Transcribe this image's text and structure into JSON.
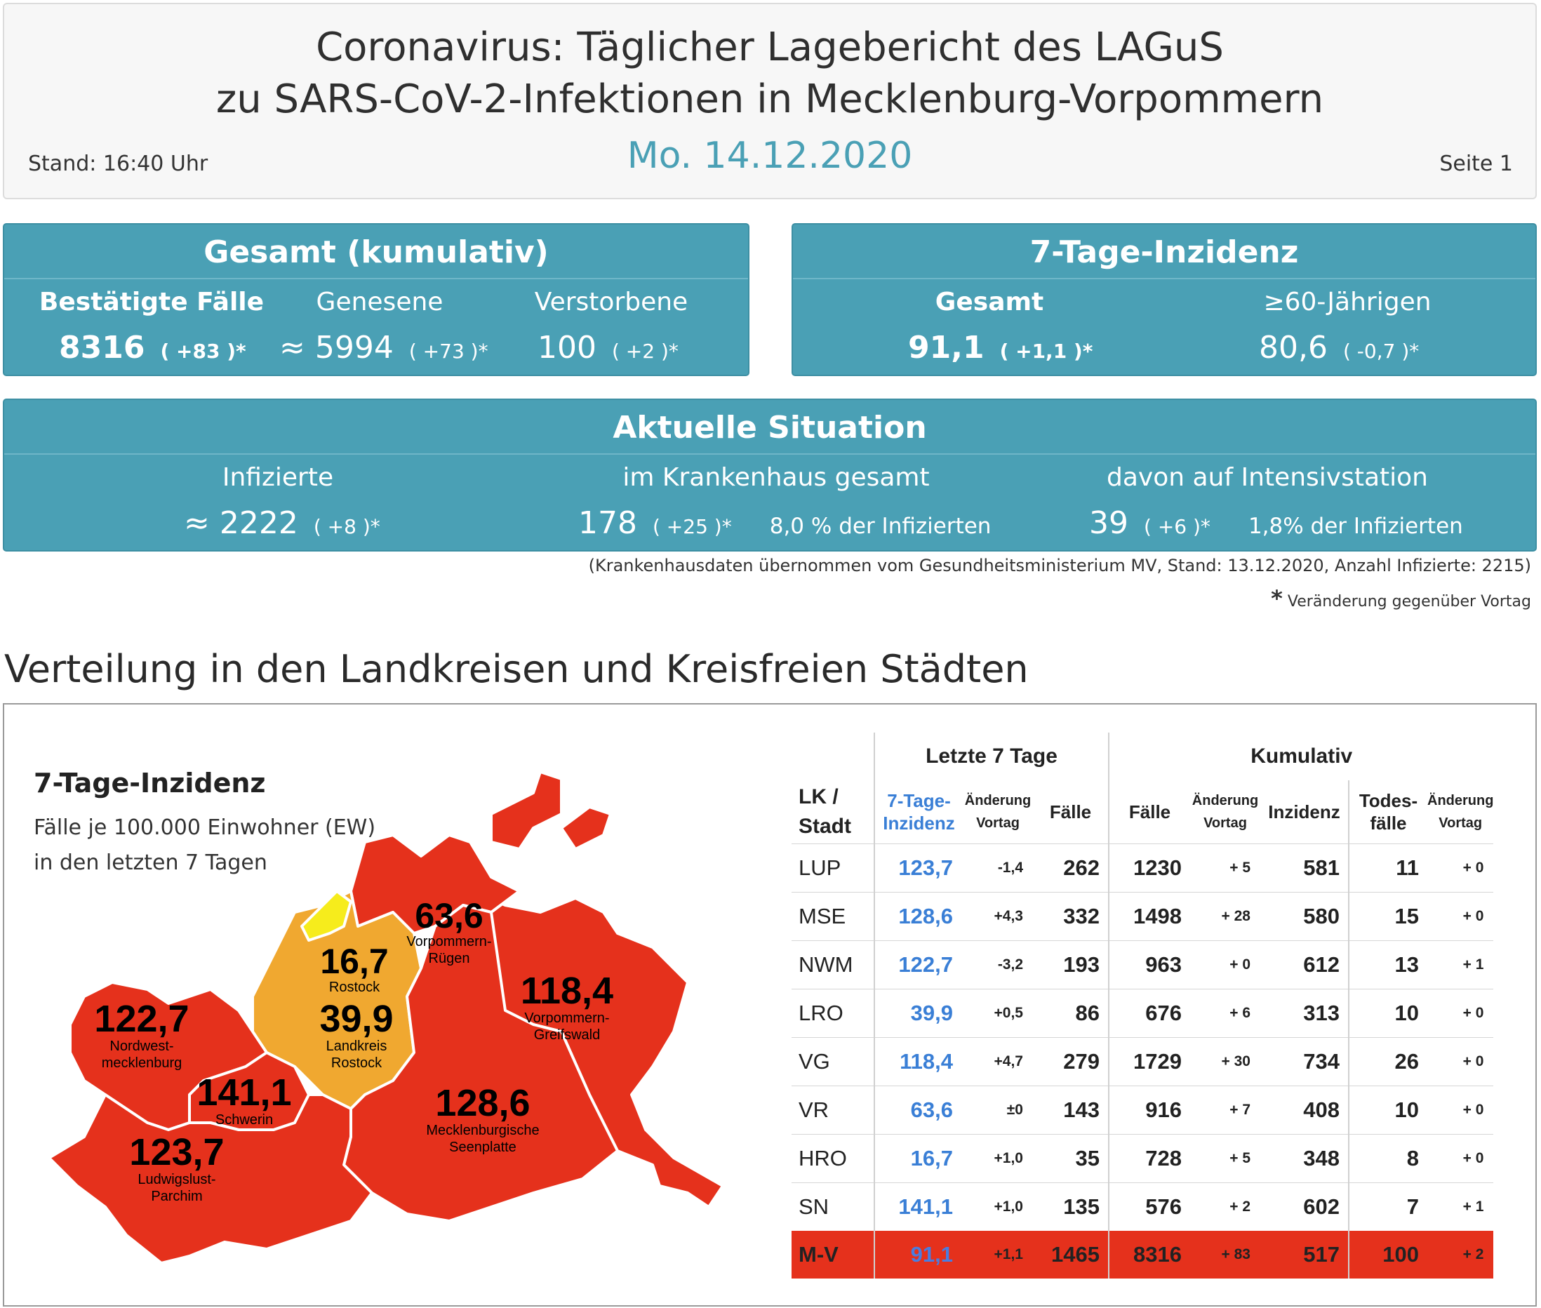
{
  "header": {
    "title_line1": "Coronavirus: Täglicher Lagebericht des LAGuS",
    "title_line2": "zu SARS-CoV-2-Infektionen in Mecklenburg-Vorpommern",
    "date": "Mo. 14.12.2020",
    "stand": "Stand: 16:40 Uhr",
    "page": "Seite 1"
  },
  "gesamt": {
    "title": "Gesamt (kumulativ)",
    "bestaetigt_label": "Bestätigte Fälle",
    "bestaetigt_value": "8316",
    "bestaetigt_delta": "( +83 )*",
    "genesene_label": "Genesene",
    "genesene_value": "≈ 5994",
    "genesene_delta": "( +73 )*",
    "verstorbene_label": "Verstorbene",
    "verstorbene_value": "100",
    "verstorbene_delta": "( +2 )*"
  },
  "inzidenz": {
    "title": "7-Tage-Inzidenz",
    "gesamt_label": "Gesamt",
    "gesamt_value": "91,1",
    "gesamt_delta": "( +1,1 )*",
    "ue60_label": "≥60-Jährigen",
    "ue60_value": "80,6",
    "ue60_delta": "( -0,7 )*"
  },
  "aktuell": {
    "title": "Aktuelle Situation",
    "infizierte_label": "Infizierte",
    "infizierte_value": "≈ 2222",
    "infizierte_delta": "( +8 )*",
    "kh_label": "im Krankenhaus gesamt",
    "kh_value": "178",
    "kh_delta": "( +25 )*",
    "kh_pct": "8,0 % der Infizierten",
    "its_label": "davon auf Intensivstation",
    "its_value": "39",
    "its_delta": "( +6 )*",
    "its_pct": "1,8% der Infizierten"
  },
  "notes": {
    "kh_source": "(Krankenhausdaten übernommen vom Gesundheitsministerium MV, Stand: 13.12.2020, Anzahl Infizierte: 2215)",
    "star": "*",
    "vortag": "Veränderung gegenüber Vortag"
  },
  "section_title": "Verteilung in den Landkreisen und Kreisfreien Städten",
  "map": {
    "title": "7-Tage-Inzidenz",
    "sub1": "Fälle je 100.000 Einwohner (EW)",
    "sub2": "in den letzten 7 Tagen",
    "colors": {
      "high": "#e5311c",
      "medium": "#f0a830",
      "low": "#f6ec1c",
      "border": "#ffffff"
    },
    "regions": [
      {
        "id": "vr",
        "value": "63,6",
        "name1": "Vorpommern-",
        "name2": "Rügen"
      },
      {
        "id": "hro",
        "value": "16,7",
        "name1": "Rostock",
        "name2": ""
      },
      {
        "id": "lro",
        "value": "39,9",
        "name1": "Landkreis",
        "name2": "Rostock"
      },
      {
        "id": "vg",
        "value": "118,4",
        "name1": "Vorpommern-",
        "name2": "Greifswald"
      },
      {
        "id": "nwm",
        "value": "122,7",
        "name1": "Nordwest-",
        "name2": "mecklenburg"
      },
      {
        "id": "sn",
        "value": "141,1",
        "name1": "Schwerin",
        "name2": ""
      },
      {
        "id": "mse",
        "value": "128,6",
        "name1": "Mecklenburgische",
        "name2": "Seenplatte"
      },
      {
        "id": "lup",
        "value": "123,7",
        "name1": "Ludwigslust-",
        "name2": "Parchim"
      }
    ]
  },
  "table": {
    "group_7": "Letzte 7 Tage",
    "group_kum": "Kumulativ",
    "h_lk1": "LK /",
    "h_lk2": "Stadt",
    "h_inz1": "7-Tage-",
    "h_inz2": "Inzidenz",
    "h_aend1": "Änderung",
    "h_aend2": "Vortag",
    "h_faelle": "Fälle",
    "h_kfaelle": "Fälle",
    "h_kaend1": "Änderung",
    "h_kaend2": "Vortag",
    "h_kinz": "Inzidenz",
    "h_tod1": "Todes-",
    "h_tod2": "fälle",
    "h_taend1": "Änderung",
    "h_taend2": "Vortag",
    "rows": [
      {
        "lk": "LUP",
        "inz": "123,7",
        "aend": "-1,4",
        "faelle": "262",
        "kfaelle": "1230",
        "kaend": "+ 5",
        "kinz": "581",
        "tod": "11",
        "taend": "+ 0"
      },
      {
        "lk": "MSE",
        "inz": "128,6",
        "aend": "+4,3",
        "faelle": "332",
        "kfaelle": "1498",
        "kaend": "+ 28",
        "kinz": "580",
        "tod": "15",
        "taend": "+ 0"
      },
      {
        "lk": "NWM",
        "inz": "122,7",
        "aend": "-3,2",
        "faelle": "193",
        "kfaelle": "963",
        "kaend": "+ 0",
        "kinz": "612",
        "tod": "13",
        "taend": "+ 1"
      },
      {
        "lk": "LRO",
        "inz": "39,9",
        "aend": "+0,5",
        "faelle": "86",
        "kfaelle": "676",
        "kaend": "+ 6",
        "kinz": "313",
        "tod": "10",
        "taend": "+ 0"
      },
      {
        "lk": "VG",
        "inz": "118,4",
        "aend": "+4,7",
        "faelle": "279",
        "kfaelle": "1729",
        "kaend": "+ 30",
        "kinz": "734",
        "tod": "26",
        "taend": "+ 0"
      },
      {
        "lk": "VR",
        "inz": "63,6",
        "aend": "±0",
        "faelle": "143",
        "kfaelle": "916",
        "kaend": "+ 7",
        "kinz": "408",
        "tod": "10",
        "taend": "+ 0"
      },
      {
        "lk": "HRO",
        "inz": "16,7",
        "aend": "+1,0",
        "faelle": "35",
        "kfaelle": "728",
        "kaend": "+ 5",
        "kinz": "348",
        "tod": "8",
        "taend": "+ 0"
      },
      {
        "lk": "SN",
        "inz": "141,1",
        "aend": "+1,0",
        "faelle": "135",
        "kfaelle": "576",
        "kaend": "+ 2",
        "kinz": "602",
        "tod": "7",
        "taend": "+ 1"
      }
    ],
    "total": {
      "lk": "M-V",
      "inz": "91,1",
      "aend": "+1,1",
      "faelle": "1465",
      "kfaelle": "8316",
      "kaend": "+ 83",
      "kinz": "517",
      "tod": "100",
      "taend": "+ 2"
    }
  }
}
